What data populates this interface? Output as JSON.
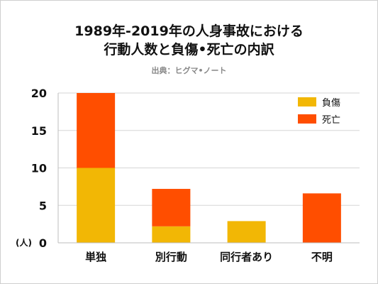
{
  "chart_data": {
    "type": "bar",
    "stacked": true,
    "title_lines": [
      "1989年-2019年の人身事故における",
      "行動人数と負傷•死亡の内訳"
    ],
    "source": "出典：ヒグマ•ノート",
    "y_unit": "(人)",
    "ylim": [
      0,
      20
    ],
    "yticks": [
      0,
      5,
      10,
      15,
      20
    ],
    "grid": true,
    "legend_position": "top-right",
    "categories": [
      "単独",
      "別行動",
      "同行者あり",
      "不明"
    ],
    "series": [
      {
        "name": "負傷",
        "color": "#f2b705",
        "values": [
          10,
          2.2,
          2.9,
          0
        ]
      },
      {
        "name": "死亡",
        "color": "#ff4e00",
        "values": [
          10,
          5.0,
          0,
          6.6
        ]
      }
    ]
  }
}
